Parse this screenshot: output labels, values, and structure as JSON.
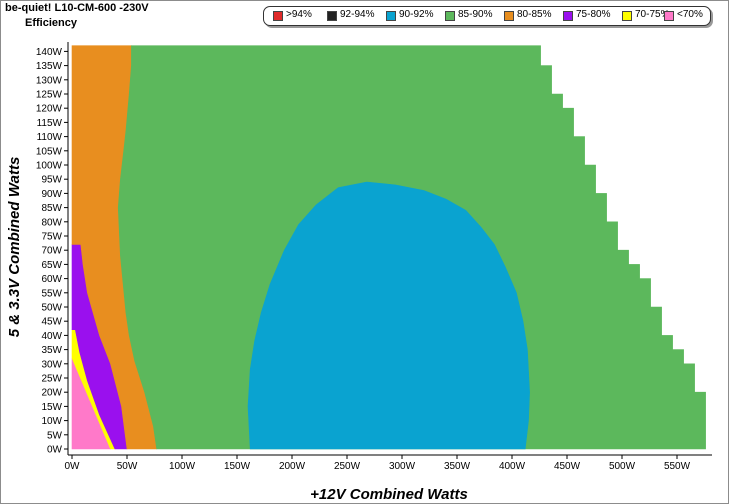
{
  "header": {
    "title": "be-quiet! L10-CM-600 -230V",
    "subtitle": "Efficiency"
  },
  "legend": [
    {
      "label": ">94%",
      "color": "#e02a2a"
    },
    {
      "label": "92-94%",
      "color": "#222222"
    },
    {
      "label": "90-92%",
      "color": "#0aa3d0"
    },
    {
      "label": "85-90%",
      "color": "#5cb85c"
    },
    {
      "label": "80-85%",
      "color": "#e88e1f"
    },
    {
      "label": "75-80%",
      "color": "#9a10ee"
    },
    {
      "label": "70-75%",
      "color": "#ffff00"
    },
    {
      "label": "<70%",
      "color": "#ff79c9"
    }
  ],
  "chart_data": {
    "type": "heatmap",
    "title": "be-quiet! L10-CM-600 -230V",
    "subtitle": "Efficiency",
    "xlabel": "+12V Combined Watts",
    "ylabel": "5 & 3.3V Combined Watts",
    "x_ticks": [
      "0W",
      "50W",
      "100W",
      "150W",
      "200W",
      "250W",
      "300W",
      "350W",
      "400W",
      "450W",
      "500W",
      "550W"
    ],
    "y_ticks": [
      "0W",
      "5W",
      "10W",
      "15W",
      "20W",
      "25W",
      "30W",
      "35W",
      "40W",
      "45W",
      "50W",
      "55W",
      "60W",
      "65W",
      "70W",
      "75W",
      "80W",
      "85W",
      "90W",
      "95W",
      "100W",
      "105W",
      "110W",
      "115W",
      "120W",
      "125W",
      "130W",
      "135W",
      "140W"
    ],
    "xlim": [
      0,
      580
    ],
    "ylim": [
      0,
      142
    ],
    "grid": false,
    "legend_position": "top-right",
    "bands": [
      {
        "label": "<70%",
        "points": [
          [
            0,
            0
          ],
          [
            35,
            0
          ],
          [
            0,
            32
          ]
        ]
      },
      {
        "label": "70-75%",
        "points": [
          [
            35,
            0
          ],
          [
            39,
            0
          ],
          [
            25,
            12
          ],
          [
            14,
            24
          ],
          [
            7,
            34
          ],
          [
            3,
            42
          ],
          [
            0,
            42
          ],
          [
            0,
            32
          ]
        ]
      },
      {
        "label": "75-80%",
        "points": [
          [
            39,
            0
          ],
          [
            50,
            0
          ],
          [
            45,
            15
          ],
          [
            35,
            30
          ],
          [
            25,
            40
          ],
          [
            14,
            55
          ],
          [
            10,
            65
          ],
          [
            8,
            72
          ],
          [
            0,
            72
          ],
          [
            0,
            42
          ],
          [
            3,
            42
          ],
          [
            7,
            34
          ],
          [
            14,
            24
          ],
          [
            25,
            12
          ]
        ]
      },
      {
        "label": "80-85%",
        "points": [
          [
            50,
            0
          ],
          [
            77,
            0
          ],
          [
            74,
            8
          ],
          [
            66,
            20
          ],
          [
            57,
            31
          ],
          [
            52,
            40
          ],
          [
            49,
            48
          ],
          [
            46,
            60
          ],
          [
            44,
            68
          ],
          [
            42,
            85
          ],
          [
            44,
            95
          ],
          [
            47,
            105
          ],
          [
            49,
            112
          ],
          [
            52,
            125
          ],
          [
            54,
            135
          ],
          [
            54,
            142
          ],
          [
            0,
            142
          ],
          [
            0,
            72
          ],
          [
            8,
            72
          ],
          [
            10,
            65
          ],
          [
            14,
            55
          ],
          [
            25,
            40
          ],
          [
            35,
            30
          ],
          [
            45,
            15
          ]
        ]
      },
      {
        "label": "85-90%",
        "points": [
          [
            77,
            0
          ],
          [
            576,
            0
          ],
          [
            576,
            20
          ],
          [
            566,
            20
          ],
          [
            566,
            30
          ],
          [
            556,
            30
          ],
          [
            556,
            35
          ],
          [
            546,
            35
          ],
          [
            546,
            40
          ],
          [
            536,
            40
          ],
          [
            536,
            50
          ],
          [
            526,
            50
          ],
          [
            526,
            60
          ],
          [
            516,
            60
          ],
          [
            516,
            65
          ],
          [
            506,
            65
          ],
          [
            506,
            70
          ],
          [
            496,
            70
          ],
          [
            496,
            80
          ],
          [
            486,
            80
          ],
          [
            486,
            90
          ],
          [
            476,
            90
          ],
          [
            476,
            100
          ],
          [
            466,
            100
          ],
          [
            466,
            110
          ],
          [
            456,
            110
          ],
          [
            456,
            120
          ],
          [
            446,
            120
          ],
          [
            446,
            125
          ],
          [
            436,
            125
          ],
          [
            436,
            135
          ],
          [
            426,
            135
          ],
          [
            426,
            142
          ],
          [
            54,
            142
          ],
          [
            54,
            135
          ],
          [
            52,
            125
          ],
          [
            49,
            112
          ],
          [
            47,
            105
          ],
          [
            44,
            95
          ],
          [
            42,
            85
          ],
          [
            44,
            68
          ],
          [
            46,
            60
          ],
          [
            49,
            48
          ],
          [
            52,
            40
          ],
          [
            57,
            31
          ],
          [
            66,
            20
          ],
          [
            74,
            8
          ]
        ]
      },
      {
        "label": "90-92%",
        "points": [
          [
            162,
            0
          ],
          [
            412,
            0
          ],
          [
            415,
            10
          ],
          [
            416,
            20
          ],
          [
            414,
            35
          ],
          [
            410,
            45
          ],
          [
            404,
            55
          ],
          [
            394,
            64
          ],
          [
            384,
            72
          ],
          [
            372,
            78
          ],
          [
            358,
            84
          ],
          [
            340,
            88
          ],
          [
            320,
            91
          ],
          [
            294,
            93
          ],
          [
            268,
            94
          ],
          [
            242,
            92
          ],
          [
            222,
            86
          ],
          [
            206,
            79
          ],
          [
            193,
            70
          ],
          [
            180,
            58
          ],
          [
            172,
            48
          ],
          [
            166,
            38
          ],
          [
            162,
            28
          ],
          [
            160,
            15
          ]
        ]
      }
    ]
  }
}
